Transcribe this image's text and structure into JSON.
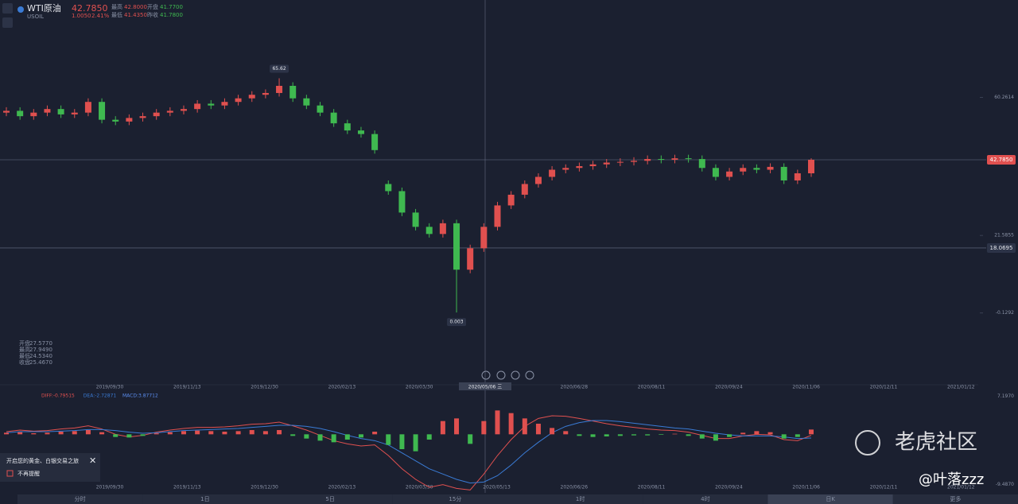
{
  "header": {
    "symbol": "WTI原油",
    "code": "USOIL",
    "price": "42.7850",
    "change": "1.0050",
    "change_pct": "2.41%",
    "stats": [
      {
        "label": "最高",
        "value": "42.8000"
      },
      {
        "label": "开盘",
        "value": "41.7700"
      },
      {
        "label": "最低",
        "value": "41.4350"
      },
      {
        "label": "昨收",
        "value": "41.7800"
      }
    ]
  },
  "ohlc_box": [
    {
      "label": "开盘",
      "value": "27.5770"
    },
    {
      "label": "最高",
      "value": "27.9490"
    },
    {
      "label": "最低",
      "value": "24.5340"
    },
    {
      "label": "收盘",
      "value": "25.4670"
    }
  ],
  "chart_data": [
    {
      "type": "candlestick",
      "up_color": "#e0504f",
      "down_color": "#3fb950",
      "x_labels": [
        "2019/09/30",
        "2019/11/13",
        "2019/12/30",
        "2020/02/13",
        "2020/03/30",
        "2020/05/06 三",
        "2020/06/28",
        "2020/08/11",
        "2020/09/24",
        "2020/11/06",
        "2020/12/11",
        "2021/01/12"
      ],
      "open": [
        56,
        56.5,
        55,
        56,
        57,
        55.5,
        56,
        59,
        54,
        53.5,
        54.5,
        55,
        56,
        56.5,
        57,
        58.5,
        58,
        59,
        60,
        61,
        61.5,
        63.5,
        60,
        58,
        56,
        53,
        51,
        50,
        36,
        34,
        28,
        24,
        22,
        25,
        12,
        18,
        24,
        30,
        33,
        36,
        38,
        40,
        40.5,
        41,
        41.5,
        42,
        42.2,
        42.5,
        43,
        42.8,
        43.2,
        43,
        40.5,
        38,
        39.5,
        40.5,
        40,
        40.8,
        37,
        39
      ],
      "high": [
        57.5,
        57.5,
        57,
        58,
        58,
        57,
        60,
        60,
        55,
        55.5,
        56,
        57,
        57.5,
        58,
        59.5,
        59.5,
        60,
        61,
        62,
        62.5,
        65.62,
        64.5,
        61,
        59,
        57,
        54,
        52,
        51,
        37,
        35,
        29,
        25,
        26,
        26,
        19,
        25,
        31,
        34,
        37,
        39,
        41,
        41.5,
        42,
        42.5,
        43,
        43.2,
        43.5,
        44,
        44,
        44.2,
        44.2,
        44,
        41.5,
        40.5,
        41.5,
        41.5,
        41.8,
        41.8,
        40,
        43.2
      ],
      "low": [
        55,
        54,
        54,
        55,
        54.5,
        54.5,
        55,
        53,
        52.5,
        52.5,
        53.5,
        54,
        55,
        55.5,
        56,
        57,
        57,
        58,
        59,
        60,
        60.5,
        59,
        57,
        55,
        52,
        50,
        49,
        44.5,
        33,
        27,
        23,
        21,
        21,
        0.003,
        11,
        17,
        23,
        29,
        32,
        35,
        37,
        39,
        39.5,
        40,
        40.5,
        41,
        41.2,
        41.5,
        41.8,
        41.8,
        42,
        39.5,
        37,
        37,
        38.5,
        39,
        39,
        36,
        36,
        38
      ],
      "close": [
        56.5,
        55,
        56,
        57,
        55.5,
        56,
        59,
        54,
        53.5,
        54.5,
        55,
        56,
        56.5,
        57,
        58.5,
        58,
        59,
        60,
        61,
        61.5,
        63.5,
        60,
        58,
        56,
        53,
        51,
        50,
        45.5,
        34,
        28,
        24,
        22,
        25,
        12,
        18,
        24,
        30,
        33,
        36,
        38,
        40,
        40.5,
        41,
        41.5,
        42,
        42.2,
        42.5,
        43,
        42.8,
        43.2,
        43,
        40.5,
        38,
        39.5,
        40.5,
        40,
        40.8,
        37,
        39,
        42.785
      ],
      "ylim": [
        -19.35,
        87.55
      ],
      "yticks": [
        60.2614,
        21.5855,
        -0.1292
      ],
      "last_price": {
        "value": 42.785,
        "label": "42.7850"
      },
      "cursor_price": 18.0695
    },
    {
      "type": "macd",
      "ylim": [
        -10.6,
        7.7
      ],
      "yticks": [
        {
          "value": 7.197,
          "label": "7.1970"
        },
        {
          "value": -9.487,
          "label": "-9.4870"
        }
      ],
      "x_labels": [
        "2019/09/30",
        "2019/11/13",
        "2019/12/30",
        "2020/02/13",
        "2020/03/30",
        "2020/05/13",
        "2020/06/26",
        "2020/08/11",
        "2020/09/24",
        "2020/11/06",
        "2020/12/11",
        "2021/01/12"
      ],
      "series": [
        {
          "name": "DIFF:-0.79515",
          "color": "#e0504f",
          "values": [
            0.5,
            0.8,
            0.6,
            0.7,
            1.0,
            1.2,
            1.6,
            1.0,
            0,
            -0.5,
            -0.2,
            0.4,
            0.8,
            1.1,
            1.3,
            1.3,
            1.4,
            1.6,
            1.9,
            2.0,
            2.3,
            1.6,
            0.8,
            -0.2,
            -1.2,
            -1.8,
            -2.2,
            -2.0,
            -4.0,
            -6.5,
            -8.5,
            -10,
            -9.5,
            -10.2,
            -10.5,
            -7.5,
            -4.0,
            -1.0,
            1.5,
            3.0,
            3.5,
            3.4,
            3.0,
            2.5,
            2.0,
            1.6,
            1.3,
            1.0,
            0.8,
            0.7,
            0.4,
            -0.2,
            -0.8,
            -0.8,
            -0.3,
            0,
            -0.1,
            -1.0,
            -1.2,
            -0.2
          ]
        },
        {
          "name": "DEA:-2.72871",
          "color": "#3a7bd5",
          "values": [
            0.3,
            0.5,
            0.5,
            0.5,
            0.6,
            0.7,
            0.9,
            0.9,
            0.7,
            0.4,
            0.2,
            0.3,
            0.5,
            0.7,
            0.8,
            0.9,
            1.0,
            1.1,
            1.3,
            1.5,
            1.7,
            1.7,
            1.5,
            1.1,
            0.5,
            -0.2,
            -0.8,
            -1.2,
            -2.0,
            -3.5,
            -5.0,
            -6.5,
            -7.5,
            -8.5,
            -9.2,
            -9.0,
            -7.8,
            -5.8,
            -3.5,
            -1.5,
            0.3,
            1.5,
            2.2,
            2.6,
            2.6,
            2.4,
            2.1,
            1.8,
            1.5,
            1.2,
            1.0,
            0.6,
            0.2,
            -0.1,
            -0.3,
            -0.3,
            -0.3,
            -0.5,
            -0.8,
            -0.7
          ]
        },
        {
          "name": "MACD:3.87712",
          "color": "#5b8def",
          "values": [
            0.3,
            0.4,
            0.2,
            0.3,
            0.5,
            0.6,
            0.8,
            0.4,
            -0.5,
            -0.6,
            -0.3,
            0.2,
            0.4,
            0.6,
            0.7,
            0.6,
            0.5,
            0.6,
            0.8,
            0.6,
            0.8,
            -0.3,
            -0.8,
            -1.2,
            -1.5,
            -1.0,
            -0.6,
            0.5,
            -2.0,
            -2.8,
            -3.2,
            -1.0,
            2.5,
            3.0,
            -1.8,
            2.5,
            4.5,
            4.0,
            3.0,
            2.0,
            1.2,
            0.6,
            -0.3,
            -0.5,
            -0.4,
            -0.3,
            -0.2,
            -0.2,
            -0.1,
            0.1,
            -0.3,
            -0.8,
            -1.2,
            -0.5,
            0.3,
            0.6,
            0.4,
            -0.8,
            -0.5,
            0.9
          ]
        }
      ]
    }
  ],
  "tabs": [
    "分时",
    "1日",
    "5日",
    "15分",
    "1时",
    "4时",
    "日K",
    "更多"
  ],
  "popup": {
    "title": "开启您的黄金、白银交易之旅",
    "option": "不再提醒"
  },
  "watermark": {
    "brand": "老虎社区",
    "user": "@叶落zzz"
  }
}
